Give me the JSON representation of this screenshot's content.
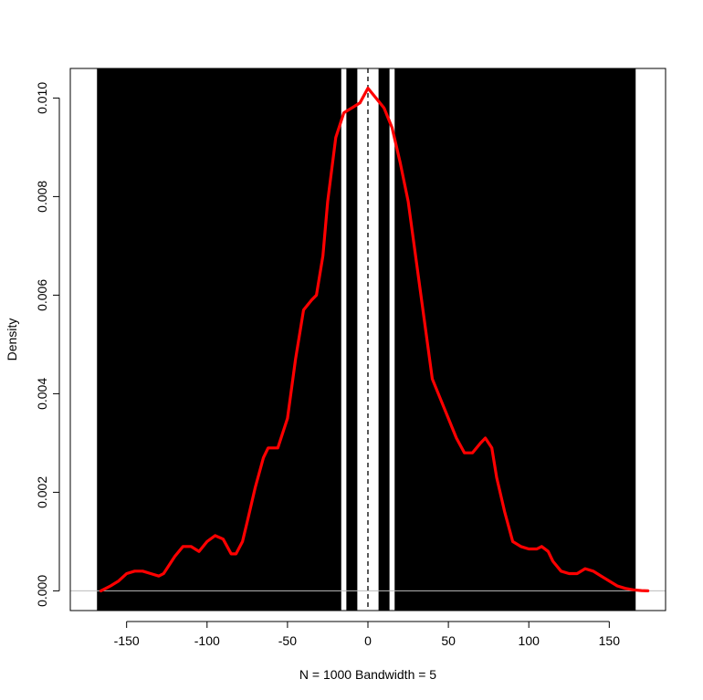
{
  "chart_data": {
    "type": "line",
    "title": "",
    "xlabel": "N = 1000   Bandwidth = 5",
    "ylabel": "Density",
    "xlim": [
      -185,
      185
    ],
    "ylim": [
      -0.0004,
      0.0106
    ],
    "x_ticks": [
      -150,
      -100,
      -50,
      0,
      50,
      100,
      150
    ],
    "x_tick_labels": [
      "-150",
      "-100",
      "-50",
      "0",
      "50",
      "100",
      "150"
    ],
    "y_ticks": [
      0.0,
      0.002,
      0.004,
      0.006,
      0.008,
      0.01
    ],
    "y_tick_labels": [
      "0.000",
      "0.002",
      "0.004",
      "0.006",
      "0.008",
      "0.010"
    ],
    "grid": false,
    "baseline": {
      "y": 0,
      "color": "#bbbbbb"
    },
    "reference_line": {
      "x": 0,
      "style": "dashed",
      "color": "#000000"
    },
    "vertical_lines": {
      "color": "#000000",
      "x": [
        -165,
        -160,
        -155,
        -150,
        -145,
        -140,
        -135,
        -130,
        -125,
        -120,
        -115,
        -110,
        -105,
        -100,
        -95,
        -90,
        -85,
        -80,
        -75,
        -70,
        -65,
        -60,
        -55,
        -50,
        -45,
        -40,
        -35,
        -30,
        -25,
        -20,
        -10,
        10,
        20,
        25,
        30,
        35,
        40,
        45,
        50,
        55,
        60,
        65,
        70,
        75,
        80,
        85,
        90,
        95,
        100,
        105,
        110,
        115,
        120,
        125,
        130,
        135,
        140,
        145,
        150,
        155,
        160,
        163
      ]
    },
    "series": [
      {
        "color": "#ff0000",
        "x": [
          -166,
          -160,
          -155,
          -150,
          -145,
          -140,
          -135,
          -130,
          -127,
          -120,
          -115,
          -110,
          -105,
          -100,
          -95,
          -90,
          -85,
          -82,
          -78,
          -75,
          -70,
          -65,
          -62,
          -60,
          -56,
          -50,
          -45,
          -40,
          -35,
          -32,
          -28,
          -25,
          -20,
          -15,
          -10,
          -5,
          0,
          5,
          10,
          15,
          20,
          25,
          30,
          35,
          40,
          45,
          50,
          55,
          60,
          65,
          70,
          73,
          77,
          80,
          85,
          90,
          95,
          100,
          105,
          108,
          112,
          115,
          120,
          125,
          130,
          135,
          140,
          145,
          150,
          155,
          160,
          165,
          170,
          174
        ],
        "y": [
          0.0,
          0.0001,
          0.0002,
          0.00035,
          0.0004,
          0.0004,
          0.00035,
          0.0003,
          0.00035,
          0.0007,
          0.0009,
          0.0009,
          0.0008,
          0.001,
          0.00112,
          0.00105,
          0.00075,
          0.00075,
          0.001,
          0.0014,
          0.0021,
          0.0027,
          0.0029,
          0.0029,
          0.0029,
          0.0035,
          0.0047,
          0.0057,
          0.0059,
          0.006,
          0.0068,
          0.0079,
          0.0092,
          0.0097,
          0.0098,
          0.0099,
          0.0102,
          0.01,
          0.0098,
          0.0094,
          0.0087,
          0.0079,
          0.0067,
          0.0055,
          0.0043,
          0.0039,
          0.0035,
          0.0031,
          0.0028,
          0.0028,
          0.003,
          0.0031,
          0.0029,
          0.0023,
          0.0016,
          0.001,
          0.0009,
          0.00085,
          0.00085,
          0.0009,
          0.0008,
          0.0006,
          0.0004,
          0.00035,
          0.00035,
          0.00045,
          0.0004,
          0.0003,
          0.0002,
          0.0001,
          5e-05,
          2e-05,
          5e-06,
          0.0
        ]
      }
    ]
  }
}
